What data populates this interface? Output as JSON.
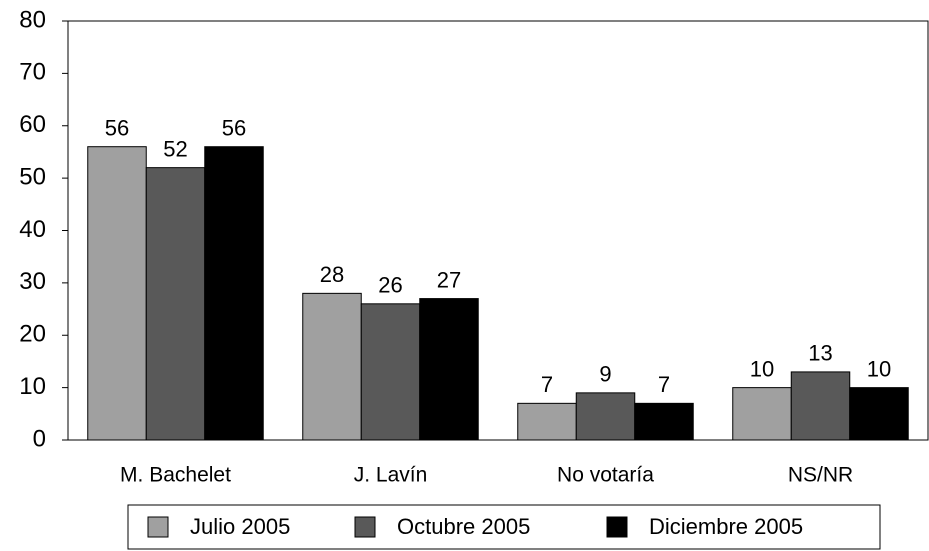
{
  "chart_data": {
    "type": "bar",
    "categories": [
      "M. Bachelet",
      "J. Lavín",
      "No votaría",
      "NS/NR"
    ],
    "series": [
      {
        "name": "Julio 2005",
        "color": "#a0a0a0",
        "values": [
          56,
          28,
          7,
          10
        ]
      },
      {
        "name": "Octubre 2005",
        "color": "#595959",
        "values": [
          52,
          26,
          9,
          13
        ]
      },
      {
        "name": "Diciembre 2005",
        "color": "#000000",
        "values": [
          56,
          27,
          7,
          10
        ]
      }
    ],
    "ylim": [
      0,
      80
    ],
    "yticks": [
      0,
      10,
      20,
      30,
      40,
      50,
      60,
      70,
      80
    ],
    "legend": "bottom"
  }
}
